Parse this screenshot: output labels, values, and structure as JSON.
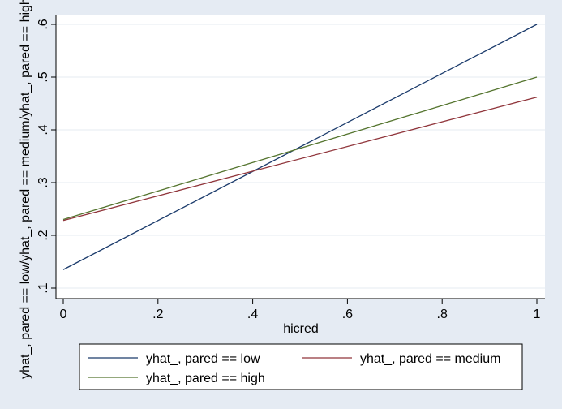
{
  "chart_data": {
    "type": "line",
    "xlabel": "hicred",
    "ylabel": "yhat_, pared == low/yhat_, pared == medium/yhat_, pared == high",
    "xlim": [
      0,
      1
    ],
    "ylim": [
      0.1,
      0.6
    ],
    "x_ticks": [
      0,
      0.2,
      0.4,
      0.6,
      0.8,
      1
    ],
    "x_tick_labels": [
      "0",
      ".2",
      ".4",
      ".6",
      ".8",
      "1"
    ],
    "y_ticks": [
      0.1,
      0.2,
      0.3,
      0.4,
      0.5,
      0.6
    ],
    "y_tick_labels": [
      ".1",
      ".2",
      ".3",
      ".4",
      ".5",
      ".6"
    ],
    "grid": true,
    "legend_position": "bottom",
    "series": [
      {
        "name": "yhat_, pared == low",
        "color": "#1a3a6b",
        "x": [
          0,
          1
        ],
        "y": [
          0.135,
          0.6
        ]
      },
      {
        "name": "yhat_, pared == medium",
        "color": "#90353b",
        "x": [
          0,
          1
        ],
        "y": [
          0.228,
          0.462
        ]
      },
      {
        "name": "yhat_, pared == high",
        "color": "#55752f",
        "x": [
          0,
          1
        ],
        "y": [
          0.23,
          0.5
        ]
      }
    ]
  }
}
